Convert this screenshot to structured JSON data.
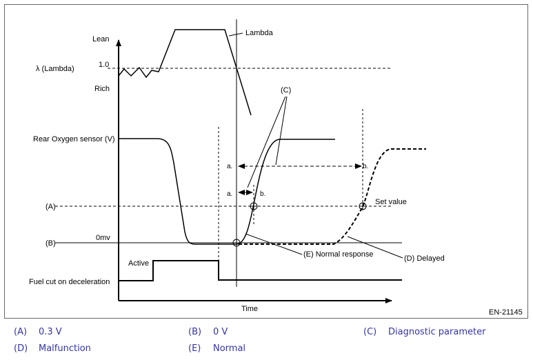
{
  "diagram": {
    "labels": {
      "lean": "Lean",
      "lambda_axis": "λ  (Lambda)",
      "one_point_zero": "1.0",
      "rich": "Rich",
      "lambda_curve": "Lambda",
      "rear_o2": "Rear Oxygen sensor (V)",
      "a_tick": "(A)",
      "b_tick": "(B)",
      "zero_mv": "0mv",
      "set_value": "Set value",
      "c_label": "(C)",
      "a_long": "a.",
      "b_long": "b.",
      "a_short": "a.",
      "b_short": "b.",
      "normal_response": "(E) Normal response",
      "delayed": "(D) Delayed",
      "active": "Active",
      "fuel_cut": "Fuel cut on deceleration",
      "time": "Time",
      "figure_id": "EN-21145"
    }
  },
  "legend": [
    {
      "key": "(A)",
      "text": "0.3 V"
    },
    {
      "key": "(B)",
      "text": "0 V"
    },
    {
      "key": "(C)",
      "text": "Diagnostic parameter"
    },
    {
      "key": "(D)",
      "text": "Malfunction"
    },
    {
      "key": "(E)",
      "text": "Normal"
    }
  ]
}
